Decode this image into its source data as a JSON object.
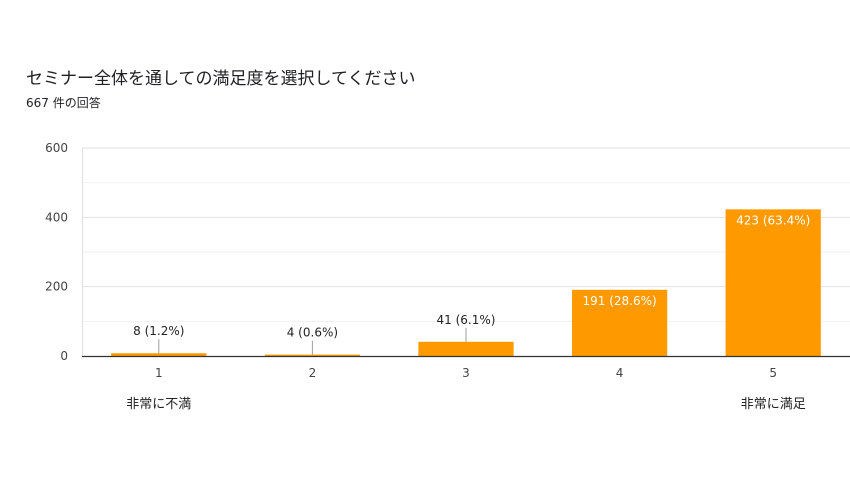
{
  "chart_data": {
    "type": "bar",
    "title": "セミナー全体を通しての満足度を選択してください",
    "subtitle": "667 件の回答",
    "categories": [
      "1",
      "2",
      "3",
      "4",
      "5"
    ],
    "values": [
      8,
      4,
      41,
      191,
      423
    ],
    "data_labels": [
      "8 (1.2%)",
      "4 (0.6%)",
      "41 (6.1%)",
      "191 (28.6%)",
      "423 (63.4%)"
    ],
    "category_notes": [
      "非常に不満",
      "",
      "",
      "",
      "非常に満足"
    ],
    "ylim": [
      0,
      600
    ],
    "yticks": [
      0,
      200,
      400,
      600
    ],
    "grid": true,
    "bar_color": "#ff9900",
    "xlabel": "",
    "ylabel": ""
  }
}
